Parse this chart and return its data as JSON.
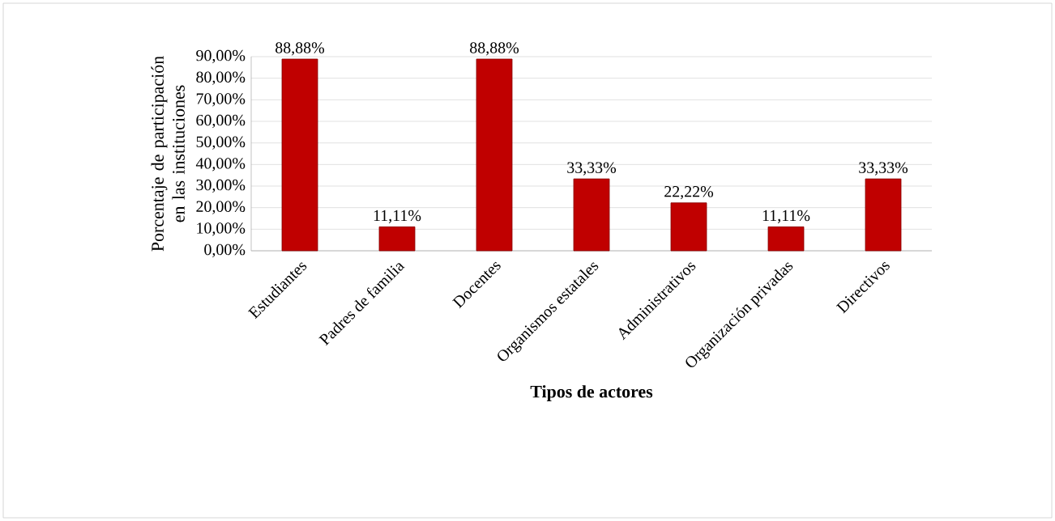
{
  "chart_data": {
    "type": "bar",
    "xlabel": "Tipos de actores",
    "ylabel": "Porcentaje de participación en las instituciones",
    "categories": [
      "Estudiantes",
      "Padres de familia",
      "Docentes",
      "Organismos estatales",
      "Administrativos",
      "Organización privadas",
      "Directivos"
    ],
    "values": [
      88.88,
      11.11,
      88.88,
      33.33,
      22.22,
      11.11,
      33.33
    ],
    "value_labels": [
      "88,88%",
      "11,11%",
      "88,88%",
      "33,33%",
      "22,22%",
      "11,11%",
      "33,33%"
    ],
    "color": "#c00000",
    "ylim": [
      0,
      90
    ],
    "yticks": [
      {
        "value": 0,
        "label": "0,00%"
      },
      {
        "value": 10,
        "label": "10,00%"
      },
      {
        "value": 20,
        "label": "20,00%"
      },
      {
        "value": 30,
        "label": "30,00%"
      },
      {
        "value": 40,
        "label": "40,00%"
      },
      {
        "value": 50,
        "label": "50,00%"
      },
      {
        "value": 60,
        "label": "60,00%"
      },
      {
        "value": 70,
        "label": "70,00%"
      },
      {
        "value": 80,
        "label": "80,00%"
      },
      {
        "value": 90,
        "label": "90,00%"
      }
    ],
    "grid": "y"
  }
}
